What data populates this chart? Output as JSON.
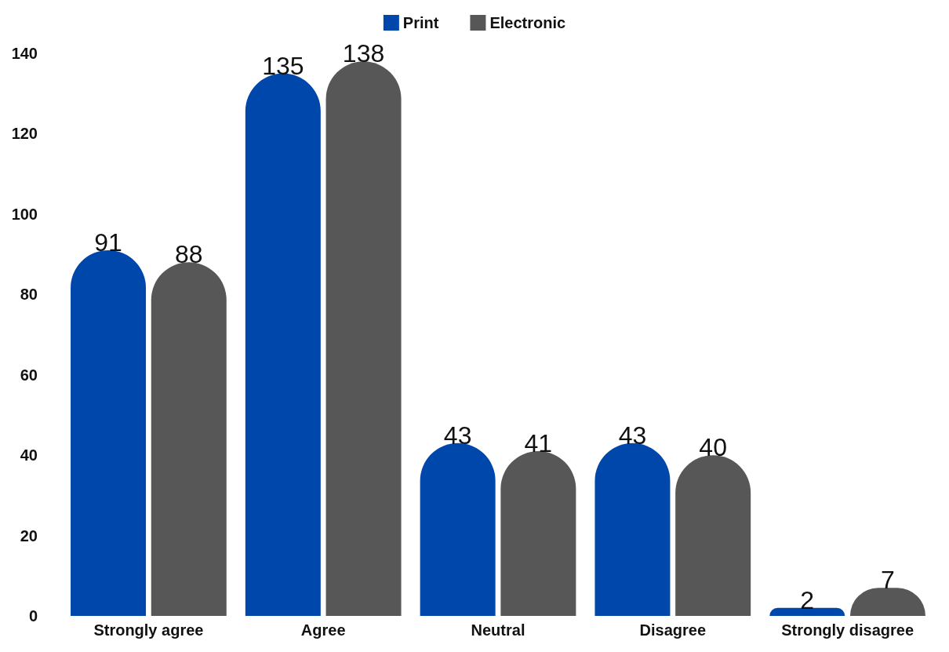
{
  "chart_data": {
    "type": "bar",
    "categories": [
      "Strongly agree",
      "Agree",
      "Neutral",
      "Disagree",
      "Strongly disagree"
    ],
    "series": [
      {
        "name": "Print",
        "color": "#0047ab",
        "values": [
          91,
          135,
          43,
          43,
          2
        ]
      },
      {
        "name": "Electronic",
        "color": "#575757",
        "values": [
          88,
          138,
          41,
          40,
          7
        ]
      }
    ],
    "ylim": [
      0,
      140
    ],
    "yticks": [
      0,
      20,
      40,
      60,
      80,
      100,
      120,
      140
    ],
    "grid": false,
    "legend": "top",
    "data_labels": true
  }
}
